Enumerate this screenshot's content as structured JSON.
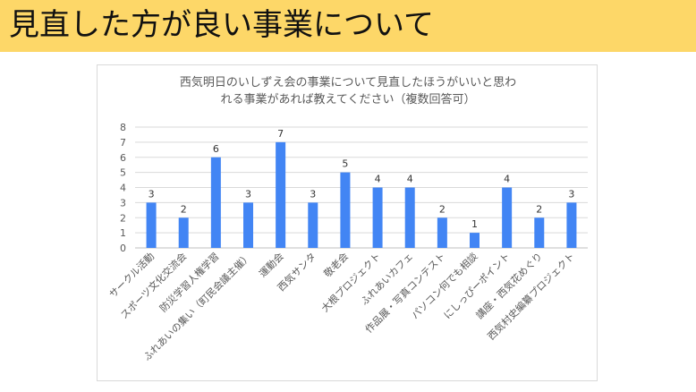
{
  "header": {
    "title": "見直した方が良い事業について"
  },
  "chart_data": {
    "type": "bar",
    "title_lines": [
      "西気明日のいしずえ会の事業について見直したほうがいいと思わ",
      "れる事業があれば教えてください（複数回答可）"
    ],
    "categories": [
      "サークル活動",
      "スポーツ文化交流会",
      "防災学習人権学習",
      "ふれあいの集い（町民会議主催）",
      "運動会",
      "西気サンタ",
      "敬老会",
      "大根プロジェクト",
      "ふれあいカフェ",
      "作品展・写真コンテスト",
      "パソコン何でも相談",
      "にしっぴーポイント",
      "講座・西気花めぐり",
      "西気村史編纂プロジェクト"
    ],
    "values": [
      3,
      2,
      6,
      3,
      7,
      3,
      5,
      4,
      4,
      2,
      1,
      4,
      2,
      3
    ],
    "ylim": [
      0,
      8
    ],
    "yticks": [
      0,
      1,
      2,
      3,
      4,
      5,
      6,
      7,
      8
    ],
    "grid": true,
    "legend": "none",
    "bar_color": "#4285F4"
  }
}
